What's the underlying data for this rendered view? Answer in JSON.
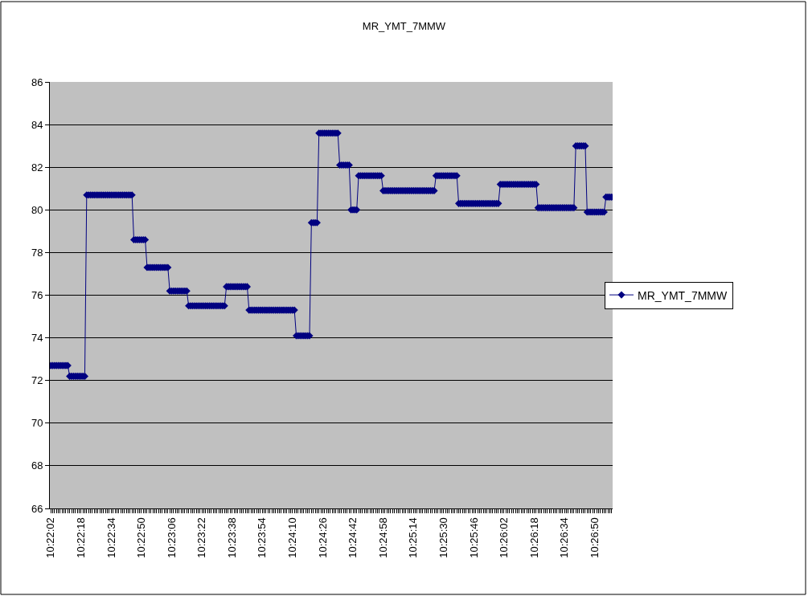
{
  "chart_data": {
    "type": "line",
    "title": "MR_YMT_7MMW",
    "categories": [
      "10:22:02",
      null,
      null,
      null,
      null,
      null,
      null,
      null,
      null,
      null,
      null,
      null,
      null,
      null,
      null,
      null,
      "10:22:18",
      null,
      null,
      null,
      null,
      null,
      null,
      null,
      null,
      null,
      null,
      null,
      null,
      null,
      null,
      null,
      "10:22:34",
      null,
      null,
      null,
      null,
      null,
      null,
      null,
      null,
      null,
      null,
      null,
      null,
      null,
      null,
      null,
      "10:22:50",
      null,
      null,
      null,
      null,
      null,
      null,
      null,
      null,
      null,
      null,
      null,
      null,
      null,
      null,
      null,
      "10:23:06",
      null,
      null,
      null,
      null,
      null,
      null,
      null,
      null,
      null,
      null,
      null,
      null,
      null,
      null,
      null,
      "10:23:22",
      null,
      null,
      null,
      null,
      null,
      null,
      null,
      null,
      null,
      null,
      null,
      null,
      null,
      null,
      null,
      "10:23:38",
      null,
      null,
      null,
      null,
      null,
      null,
      null,
      null,
      null,
      null,
      null,
      null,
      null,
      null,
      null,
      "10:23:54",
      null,
      null,
      null,
      null,
      null,
      null,
      null,
      null,
      null,
      null,
      null,
      null,
      null,
      null,
      null,
      "10:24:10",
      null,
      null,
      null,
      null,
      null,
      null,
      null,
      null,
      null,
      null,
      null,
      null,
      null,
      null,
      null,
      "10:24:26",
      null,
      null,
      null,
      null,
      null,
      null,
      null,
      null,
      null,
      null,
      null,
      null,
      null,
      null,
      null,
      "10:24:42",
      null,
      null,
      null,
      null,
      null,
      null,
      null,
      null,
      null,
      null,
      null,
      null,
      null,
      null,
      null,
      "10:24:58",
      null,
      null,
      null,
      null,
      null,
      null,
      null,
      null,
      null,
      null,
      null,
      null,
      null,
      null,
      null,
      "10:25:14",
      null,
      null,
      null,
      null,
      null,
      null,
      null,
      null,
      null,
      null,
      null,
      null,
      null,
      null,
      null,
      "10:25:30",
      null,
      null,
      null,
      null,
      null,
      null,
      null,
      null,
      null,
      null,
      null,
      null,
      null,
      null,
      null,
      "10:25:46",
      null,
      null,
      null,
      null,
      null,
      null,
      null,
      null,
      null,
      null,
      null,
      null,
      null,
      null,
      null,
      "10:26:02",
      null,
      null,
      null,
      null,
      null,
      null,
      null,
      null,
      null,
      null,
      null,
      null,
      null,
      null,
      null,
      "10:26:18",
      null,
      null,
      null,
      null,
      null,
      null,
      null,
      null,
      null,
      null,
      null,
      null,
      null,
      null,
      null,
      "10:26:34",
      null,
      null,
      null,
      null,
      null,
      null,
      null,
      null,
      null,
      null,
      null,
      null,
      null,
      null,
      null,
      "10:26:50",
      null,
      null,
      null,
      null,
      null,
      null,
      null,
      null,
      null
    ],
    "series": [
      {
        "name": "MR_YMT_7MMW",
        "color": "#000080",
        "values": [
          72.7,
          72.7,
          72.7,
          72.7,
          72.7,
          72.7,
          72.7,
          72.7,
          72.7,
          72.7,
          72.2,
          72.2,
          72.2,
          72.2,
          72.2,
          72.2,
          72.2,
          72.2,
          72.2,
          80.7,
          80.7,
          80.7,
          80.7,
          80.7,
          80.7,
          80.7,
          80.7,
          80.7,
          80.7,
          80.7,
          80.7,
          80.7,
          80.7,
          80.7,
          80.7,
          80.7,
          80.7,
          80.7,
          80.7,
          80.7,
          80.7,
          80.7,
          80.7,
          80.7,
          78.6,
          78.6,
          78.6,
          78.6,
          78.6,
          78.6,
          78.6,
          77.3,
          77.3,
          77.3,
          77.3,
          77.3,
          77.3,
          77.3,
          77.3,
          77.3,
          77.3,
          77.3,
          77.3,
          76.2,
          76.2,
          76.2,
          76.2,
          76.2,
          76.2,
          76.2,
          76.2,
          76.2,
          76.2,
          75.5,
          75.5,
          75.5,
          75.5,
          75.5,
          75.5,
          75.5,
          75.5,
          75.5,
          75.5,
          75.5,
          75.5,
          75.5,
          75.5,
          75.5,
          75.5,
          75.5,
          75.5,
          75.5,
          75.5,
          76.4,
          76.4,
          76.4,
          76.4,
          76.4,
          76.4,
          76.4,
          76.4,
          76.4,
          76.4,
          76.4,
          76.4,
          75.3,
          75.3,
          75.3,
          75.3,
          75.3,
          75.3,
          75.3,
          75.3,
          75.3,
          75.3,
          75.3,
          75.3,
          75.3,
          75.3,
          75.3,
          75.3,
          75.3,
          75.3,
          75.3,
          75.3,
          75.3,
          75.3,
          75.3,
          75.3,
          75.3,
          74.1,
          74.1,
          74.1,
          74.1,
          74.1,
          74.1,
          74.1,
          74.1,
          79.4,
          79.4,
          79.4,
          79.4,
          83.6,
          83.6,
          83.6,
          83.6,
          83.6,
          83.6,
          83.6,
          83.6,
          83.6,
          83.6,
          83.6,
          82.1,
          82.1,
          82.1,
          82.1,
          82.1,
          82.1,
          80.0,
          80.0,
          80.0,
          80.0,
          81.6,
          81.6,
          81.6,
          81.6,
          81.6,
          81.6,
          81.6,
          81.6,
          81.6,
          81.6,
          81.6,
          81.6,
          81.6,
          80.9,
          80.9,
          80.9,
          80.9,
          80.9,
          80.9,
          80.9,
          80.9,
          80.9,
          80.9,
          80.9,
          80.9,
          80.9,
          80.9,
          80.9,
          80.9,
          80.9,
          80.9,
          80.9,
          80.9,
          80.9,
          80.9,
          80.9,
          80.9,
          80.9,
          80.9,
          80.9,
          80.9,
          81.6,
          81.6,
          81.6,
          81.6,
          81.6,
          81.6,
          81.6,
          81.6,
          81.6,
          81.6,
          81.6,
          81.6,
          80.3,
          80.3,
          80.3,
          80.3,
          80.3,
          80.3,
          80.3,
          80.3,
          80.3,
          80.3,
          80.3,
          80.3,
          80.3,
          80.3,
          80.3,
          80.3,
          80.3,
          80.3,
          80.3,
          80.3,
          80.3,
          80.3,
          81.2,
          81.2,
          81.2,
          81.2,
          81.2,
          81.2,
          81.2,
          81.2,
          81.2,
          81.2,
          81.2,
          81.2,
          81.2,
          81.2,
          81.2,
          81.2,
          81.2,
          81.2,
          81.2,
          81.2,
          80.1,
          80.1,
          80.1,
          80.1,
          80.1,
          80.1,
          80.1,
          80.1,
          80.1,
          80.1,
          80.1,
          80.1,
          80.1,
          80.1,
          80.1,
          80.1,
          80.1,
          80.1,
          80.1,
          80.1,
          83.0,
          83.0,
          83.0,
          83.0,
          83.0,
          83.0,
          79.9,
          79.9,
          79.9,
          79.9,
          79.9,
          79.9,
          79.9,
          79.9,
          79.9,
          79.9,
          80.6,
          80.6,
          80.6,
          80.6
        ]
      }
    ],
    "ylim": [
      66,
      86
    ],
    "yticks": [
      66,
      68,
      70,
      72,
      74,
      76,
      78,
      80,
      82,
      84,
      86
    ],
    "grid": "y",
    "legend": "right",
    "marker": "diamond",
    "line_style": "solid"
  }
}
